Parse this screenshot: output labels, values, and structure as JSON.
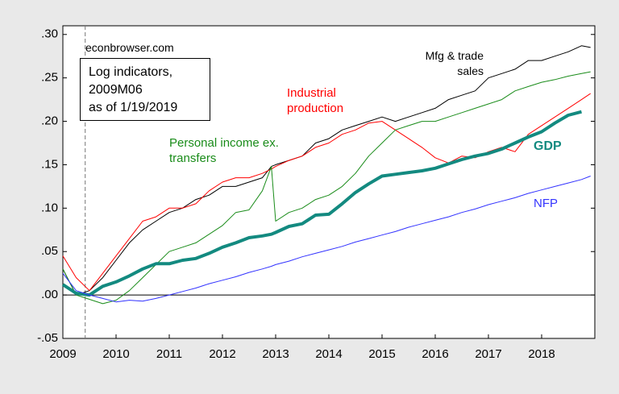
{
  "chart_data": {
    "type": "line",
    "annotations": {
      "source": "econbrowser.com",
      "note": [
        "Log indicators,",
        "2009M06",
        "as of 1/19/2019"
      ]
    },
    "reference_line_x": 2009.42,
    "xlim": [
      2009,
      2019
    ],
    "xticks": [
      2009,
      2010,
      2011,
      2012,
      2013,
      2014,
      2015,
      2016,
      2017,
      2018
    ],
    "ylim": [
      -0.05,
      0.31
    ],
    "yticks": [
      {
        "value": 0.3,
        "label": ".30"
      },
      {
        "value": 0.25,
        "label": ".25"
      },
      {
        "value": 0.2,
        "label": ".20"
      },
      {
        "value": 0.15,
        "label": ".15"
      },
      {
        "value": 0.1,
        "label": ".10"
      },
      {
        "value": 0.05,
        "label": ".05"
      },
      {
        "value": 0,
        "label": ".00"
      },
      {
        "value": -0.05,
        "label": "-.05"
      }
    ],
    "x": [
      2009,
      2009.25,
      2009.5,
      2009.75,
      2010,
      2010.25,
      2010.5,
      2010.75,
      2011,
      2011.25,
      2011.5,
      2011.75,
      2012,
      2012.25,
      2012.5,
      2012.75,
      2012.92,
      2013,
      2013.25,
      2013.5,
      2013.75,
      2014,
      2014.25,
      2014.5,
      2014.75,
      2015,
      2015.25,
      2015.5,
      2015.75,
      2016,
      2016.25,
      2016.5,
      2016.75,
      2017,
      2017.25,
      2017.5,
      2017.75,
      2018,
      2018.25,
      2018.5,
      2018.75,
      2018.92
    ],
    "series": [
      {
        "name": "Mfg & trade sales",
        "color": "#000000",
        "width": 1,
        "values": [
          0.03,
          0,
          0.005,
          0.02,
          0.04,
          0.06,
          0.075,
          0.085,
          0.095,
          0.1,
          0.11,
          0.115,
          0.125,
          0.125,
          0.13,
          0.135,
          0.148,
          0.15,
          0.155,
          0.16,
          0.175,
          0.18,
          0.19,
          0.195,
          0.2,
          0.205,
          0.2,
          0.205,
          0.21,
          0.215,
          0.225,
          0.23,
          0.235,
          0.25,
          0.255,
          0.26,
          0.27,
          0.27,
          0.275,
          0.28,
          0.287,
          0.285
        ]
      },
      {
        "name": "Industrial production",
        "color": "#ff0000",
        "width": 1,
        "values": [
          0.045,
          0.02,
          0.005,
          0.025,
          0.045,
          0.065,
          0.085,
          0.09,
          0.1,
          0.1,
          0.105,
          0.12,
          0.13,
          0.135,
          0.135,
          0.14,
          0.145,
          0.148,
          0.155,
          0.16,
          0.17,
          0.175,
          0.185,
          0.19,
          0.198,
          0.2,
          0.19,
          0.18,
          0.17,
          0.158,
          0.152,
          0.16,
          0.158,
          0.165,
          0.17,
          0.165,
          0.185,
          0.195,
          0.205,
          0.215,
          0.225,
          0.232
        ]
      },
      {
        "name": "Personal income ex. transfers",
        "color": "#1a8c1a",
        "width": 1,
        "values": [
          0.03,
          0,
          -0.005,
          -0.01,
          -0.006,
          0.005,
          0.02,
          0.035,
          0.05,
          0.055,
          0.06,
          0.07,
          0.08,
          0.095,
          0.098,
          0.12,
          0.148,
          0.085,
          0.095,
          0.1,
          0.11,
          0.115,
          0.125,
          0.14,
          0.16,
          0.175,
          0.19,
          0.195,
          0.2,
          0.2,
          0.205,
          0.21,
          0.215,
          0.22,
          0.225,
          0.235,
          0.24,
          0.245,
          0.248,
          0.252,
          0.255,
          0.257
        ]
      },
      {
        "name": "GDP",
        "color": "#138a80",
        "width": 4,
        "values": [
          0.012,
          0.002,
          0,
          0.01,
          0.015,
          0.022,
          0.03,
          0.036,
          0.036,
          0.04,
          0.042,
          0.048,
          0.055,
          0.06,
          0.066,
          0.068,
          0.07,
          0.072,
          0.079,
          0.082,
          0.092,
          0.093,
          0.105,
          0.118,
          0.128,
          0.137,
          0.139,
          0.141,
          0.143,
          0.146,
          0.151,
          0.156,
          0.16,
          0.163,
          0.168,
          0.175,
          0.182,
          0.188,
          0.198,
          0.207,
          0.211,
          null
        ]
      },
      {
        "name": "NFP",
        "color": "#3333ff",
        "width": 1,
        "values": [
          0.025,
          0.005,
          0,
          -0.004,
          -0.008,
          -0.006,
          -0.007,
          -0.004,
          0,
          0.004,
          0.008,
          0.013,
          0.017,
          0.021,
          0.026,
          0.03,
          0.033,
          0.035,
          0.039,
          0.044,
          0.048,
          0.052,
          0.056,
          0.061,
          0.065,
          0.069,
          0.073,
          0.078,
          0.082,
          0.086,
          0.09,
          0.095,
          0.099,
          0.104,
          0.108,
          0.112,
          0.117,
          0.121,
          0.125,
          0.129,
          0.133,
          0.137
        ]
      }
    ]
  }
}
